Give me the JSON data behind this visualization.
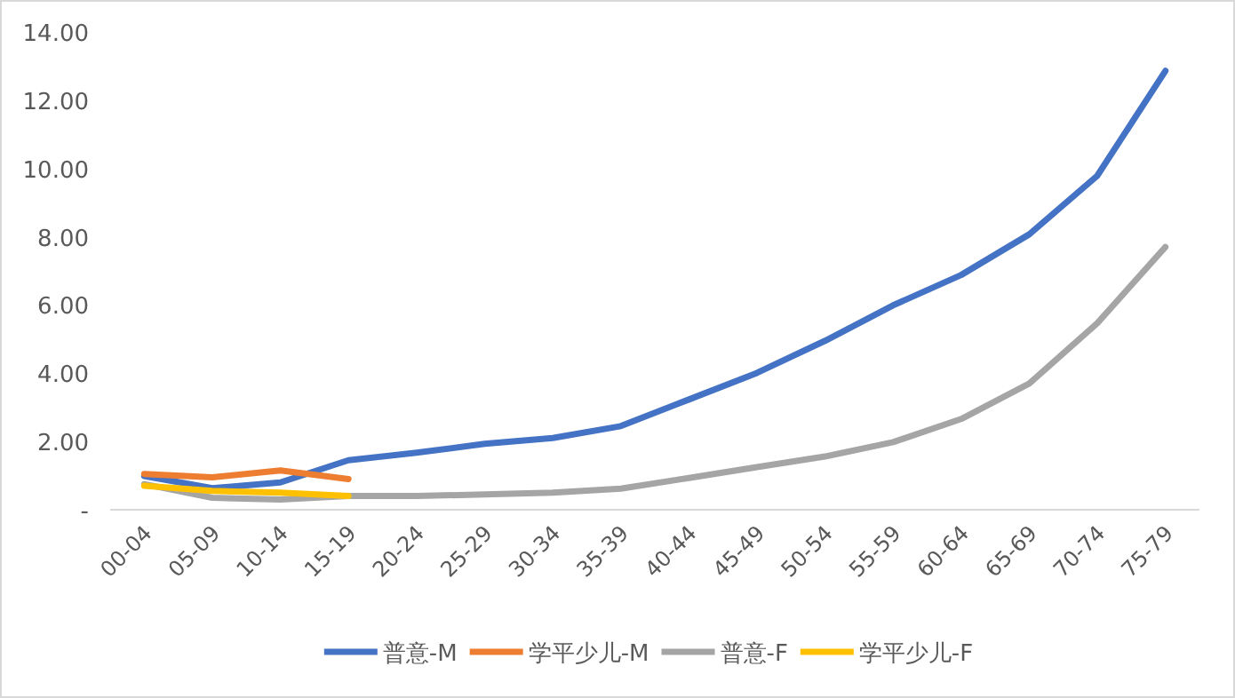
{
  "chart_data": {
    "type": "line",
    "categories": [
      "00-04",
      "05-09",
      "10-14",
      "15-19",
      "20-24",
      "25-29",
      "30-34",
      "35-39",
      "40-44",
      "45-49",
      "50-54",
      "55-59",
      "60-64",
      "65-69",
      "70-74",
      "75-79"
    ],
    "series": [
      {
        "name": "普意-M",
        "color": "#4472c4",
        "values": [
          0.99,
          0.63,
          0.8,
          1.45,
          1.67,
          1.93,
          2.1,
          2.45,
          3.23,
          4.01,
          4.95,
          5.99,
          6.88,
          8.07,
          9.79,
          12.86
        ]
      },
      {
        "name": "学平少儿-M",
        "color": "#ed7d31",
        "values": [
          1.05,
          0.95,
          1.15,
          0.9,
          null,
          null,
          null,
          null,
          null,
          null,
          null,
          null,
          null,
          null,
          null,
          null
        ]
      },
      {
        "name": "普意-F",
        "color": "#a5a5a5",
        "values": [
          0.75,
          0.35,
          0.3,
          0.4,
          0.4,
          0.45,
          0.5,
          0.62,
          0.93,
          1.25,
          1.56,
          1.98,
          2.66,
          3.7,
          5.47,
          7.7
        ]
      },
      {
        "name": "学平少儿-F",
        "color": "#ffc000",
        "values": [
          0.7,
          0.55,
          0.5,
          0.4,
          null,
          null,
          null,
          null,
          null,
          null,
          null,
          null,
          null,
          null,
          null,
          null
        ]
      }
    ],
    "ylim": [
      0,
      14
    ],
    "yticks": [
      {
        "value": 0,
        "label": "-"
      },
      {
        "value": 2,
        "label": "2.00"
      },
      {
        "value": 4,
        "label": "4.00"
      },
      {
        "value": 6,
        "label": "6.00"
      },
      {
        "value": 8,
        "label": "8.00"
      },
      {
        "value": 10,
        "label": "10.00"
      },
      {
        "value": 12,
        "label": "12.00"
      },
      {
        "value": 14,
        "label": "14.00"
      }
    ],
    "grid": false,
    "legend": "bottom",
    "marker": "none",
    "line_style": "solid"
  }
}
